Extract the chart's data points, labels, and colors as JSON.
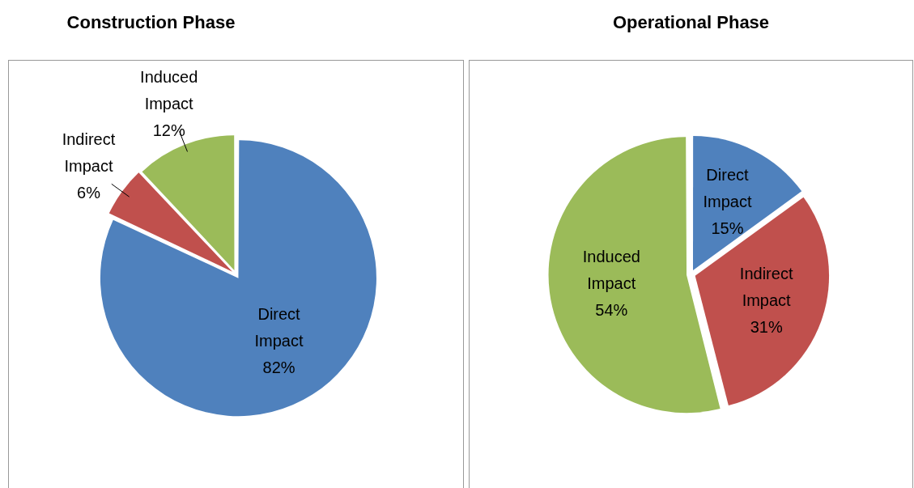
{
  "chart_data": [
    {
      "type": "pie",
      "title": "Construction Phase",
      "categories": [
        "Direct Impact",
        "Indirect Impact",
        "Induced Impact"
      ],
      "values": [
        82,
        6,
        12
      ],
      "colors": [
        "#4f81bd",
        "#c0504d",
        "#9bbb59"
      ],
      "value_labels": [
        "82%",
        "6%",
        "12%"
      ],
      "legend": false
    },
    {
      "type": "pie",
      "title": "Operational Phase",
      "categories": [
        "Direct Impact",
        "Indirect Impact",
        "Induced Impact"
      ],
      "values": [
        15,
        31,
        54
      ],
      "colors": [
        "#4f81bd",
        "#c0504d",
        "#9bbb59"
      ],
      "value_labels": [
        "15%",
        "31%",
        "54%"
      ],
      "legend": false
    }
  ]
}
